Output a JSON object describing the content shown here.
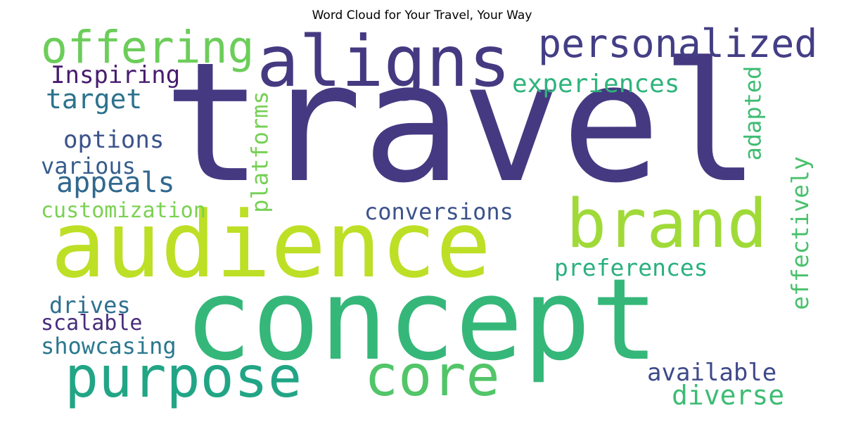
{
  "title": "Word Cloud for Your Travel, Your Way",
  "chart_data": {
    "type": "wordcloud",
    "title": "Word Cloud for Your Travel, Your Way",
    "words": [
      {
        "text": "travel",
        "color": "#453a81"
      },
      {
        "text": "audience",
        "color": "#bddf26"
      },
      {
        "text": "concept",
        "color": "#35b779"
      },
      {
        "text": "aligns",
        "color": "#453a81"
      },
      {
        "text": "brand",
        "color": "#a0da39"
      },
      {
        "text": "purpose",
        "color": "#21a585"
      },
      {
        "text": "core",
        "color": "#52c569"
      },
      {
        "text": "offering",
        "color": "#6ccd5a"
      },
      {
        "text": "personalized",
        "color": "#433e85"
      },
      {
        "text": "experiences",
        "color": "#2fb47c"
      },
      {
        "text": "Inspiring",
        "color": "#481c6e"
      },
      {
        "text": "target",
        "color": "#2c728e"
      },
      {
        "text": "options",
        "color": "#3b528b"
      },
      {
        "text": "various",
        "color": "#365c8d"
      },
      {
        "text": "appeals",
        "color": "#31688e"
      },
      {
        "text": "customization",
        "color": "#7ad151"
      },
      {
        "text": "platforms",
        "color": "#75d054"
      },
      {
        "text": "adapted",
        "color": "#3fbc73"
      },
      {
        "text": "effectively",
        "color": "#4ac16d"
      },
      {
        "text": "conversions",
        "color": "#3b528b"
      },
      {
        "text": "preferences",
        "color": "#2ab07f"
      },
      {
        "text": "drives",
        "color": "#2d708e"
      },
      {
        "text": "scalable",
        "color": "#472d7b"
      },
      {
        "text": "showcasing",
        "color": "#2a788e"
      },
      {
        "text": "available",
        "color": "#3e4989"
      },
      {
        "text": "diverse",
        "color": "#3dbc74"
      }
    ]
  }
}
